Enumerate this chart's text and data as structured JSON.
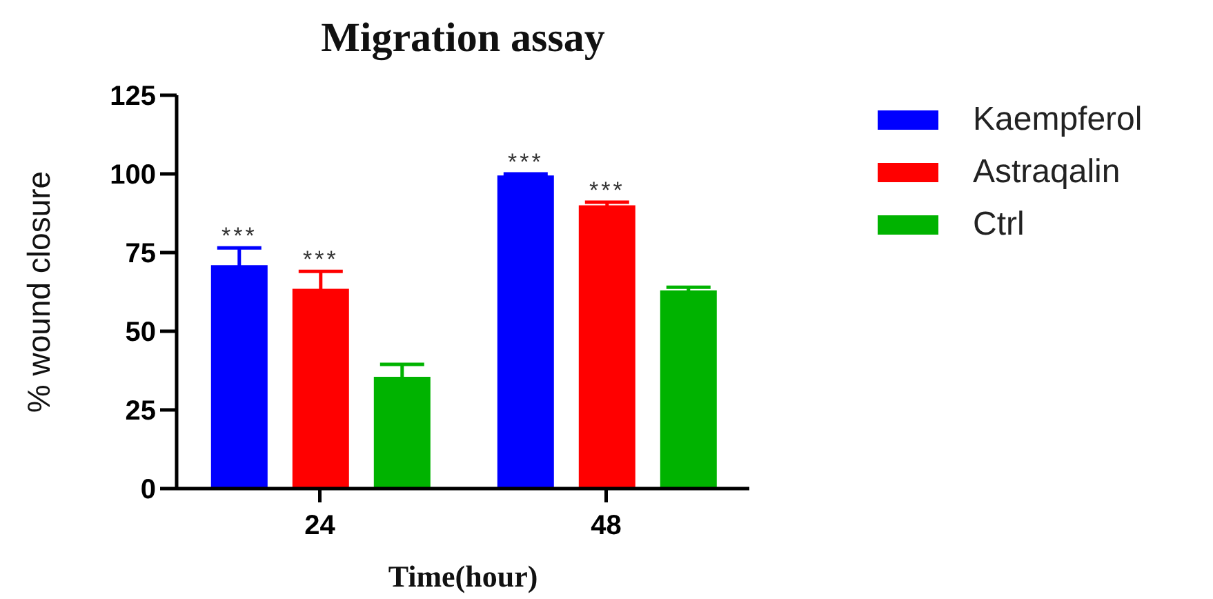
{
  "chart_data": {
    "type": "bar",
    "title": "Migration assay",
    "xlabel": "Time(hour)",
    "ylabel": "% wound closure",
    "categories": [
      "24",
      "48"
    ],
    "series": [
      {
        "name": "Kaempferol",
        "color": "#0000ff",
        "values": [
          71,
          99.5
        ],
        "errors": [
          5.5,
          0.5
        ],
        "value_labels": [
          "***",
          "***"
        ]
      },
      {
        "name": "Astraqalin",
        "color": "#ff0000",
        "values": [
          63.5,
          90
        ],
        "errors": [
          5.5,
          1
        ],
        "value_labels": [
          "***",
          "***"
        ]
      },
      {
        "name": "Ctrl",
        "color": "#00b300",
        "values": [
          35.5,
          63
        ],
        "errors": [
          4,
          1
        ]
      }
    ],
    "ylim": [
      0,
      125
    ],
    "yticks": [
      0,
      25,
      50,
      75,
      100,
      125
    ],
    "legend": "top right"
  }
}
